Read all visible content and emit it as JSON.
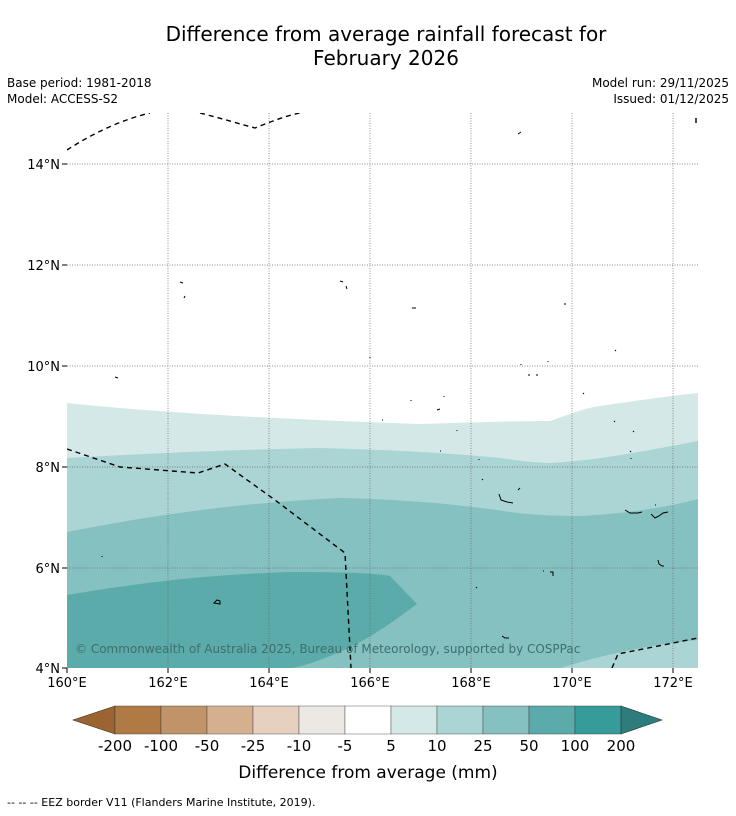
{
  "title_line1": "Difference from average rainfall forecast for",
  "title_line2": "February 2026",
  "meta": {
    "base_period": "Base period: 1981-2018",
    "model": "Model: ACCESS-S2",
    "model_run": "Model run: 29/11/2025",
    "issued": "Issued: 01/12/2025"
  },
  "map": {
    "lat_labels": [
      "14°N",
      "12°N",
      "10°N",
      "8°N",
      "6°N",
      "4°N"
    ],
    "lon_labels": [
      "160°E",
      "162°E",
      "164°E",
      "166°E",
      "168°E",
      "170°E",
      "172°E"
    ],
    "copyright": "© Commonwealth of Australia 2025, Bureau of Meteorology, supported by COSPPac"
  },
  "colorbar": {
    "title": "Difference from average (mm)",
    "tick_labels": [
      "-200",
      "-100",
      "-50",
      "-25",
      "-10",
      "-5",
      "5",
      "10",
      "25",
      "50",
      "100",
      "200"
    ],
    "colors": {
      "below_min": "#9b6431",
      "c1": "#b07a44",
      "c2": "#c09468",
      "c3": "#d4b08f",
      "c4": "#e6d0bf",
      "c5": "#ece8e4",
      "c6": "#ffffff",
      "c7": "#d4e8e7",
      "c8": "#abd5d4",
      "c9": "#84c1c0",
      "c10": "#5aabaa",
      "c11": "#359c9a",
      "above_max": "#2c7d7b"
    }
  },
  "footnote": "--  --  -- EEZ border V11 (Flanders Marine Institute, 2019)."
}
